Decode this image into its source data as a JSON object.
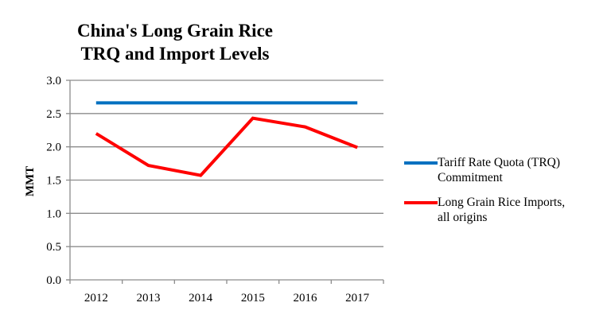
{
  "chart_data": {
    "type": "line",
    "title": "China's Long Grain Rice TRQ and Import Levels",
    "title_lines": [
      "China's Long Grain Rice",
      "TRQ and Import Levels"
    ],
    "xlabel": "",
    "ylabel": "MMT",
    "categories": [
      "2012",
      "2013",
      "2014",
      "2015",
      "2016",
      "2017"
    ],
    "ylim": [
      0,
      3.0
    ],
    "yticks": [
      "0.0",
      "0.5",
      "1.0",
      "1.5",
      "2.0",
      "2.5",
      "3.0"
    ],
    "ytick_values": [
      0,
      0.5,
      1.0,
      1.5,
      2.0,
      2.5,
      3.0
    ],
    "grid": true,
    "legend_position": "right",
    "series": [
      {
        "name": "Tariff Rate Quota (TRQ) Commitment",
        "legend_lines": [
          "Tariff Rate Quota (TRQ)",
          "Commitment"
        ],
        "color": "#0070C0",
        "values": [
          2.66,
          2.66,
          2.66,
          2.66,
          2.66,
          2.66
        ]
      },
      {
        "name": "Long Grain Rice Imports, all origins",
        "legend_lines": [
          "Long Grain Rice Imports,",
          "all origins"
        ],
        "color": "#FF0000",
        "values": [
          2.2,
          1.72,
          1.57,
          2.43,
          2.3,
          1.99
        ]
      }
    ]
  }
}
